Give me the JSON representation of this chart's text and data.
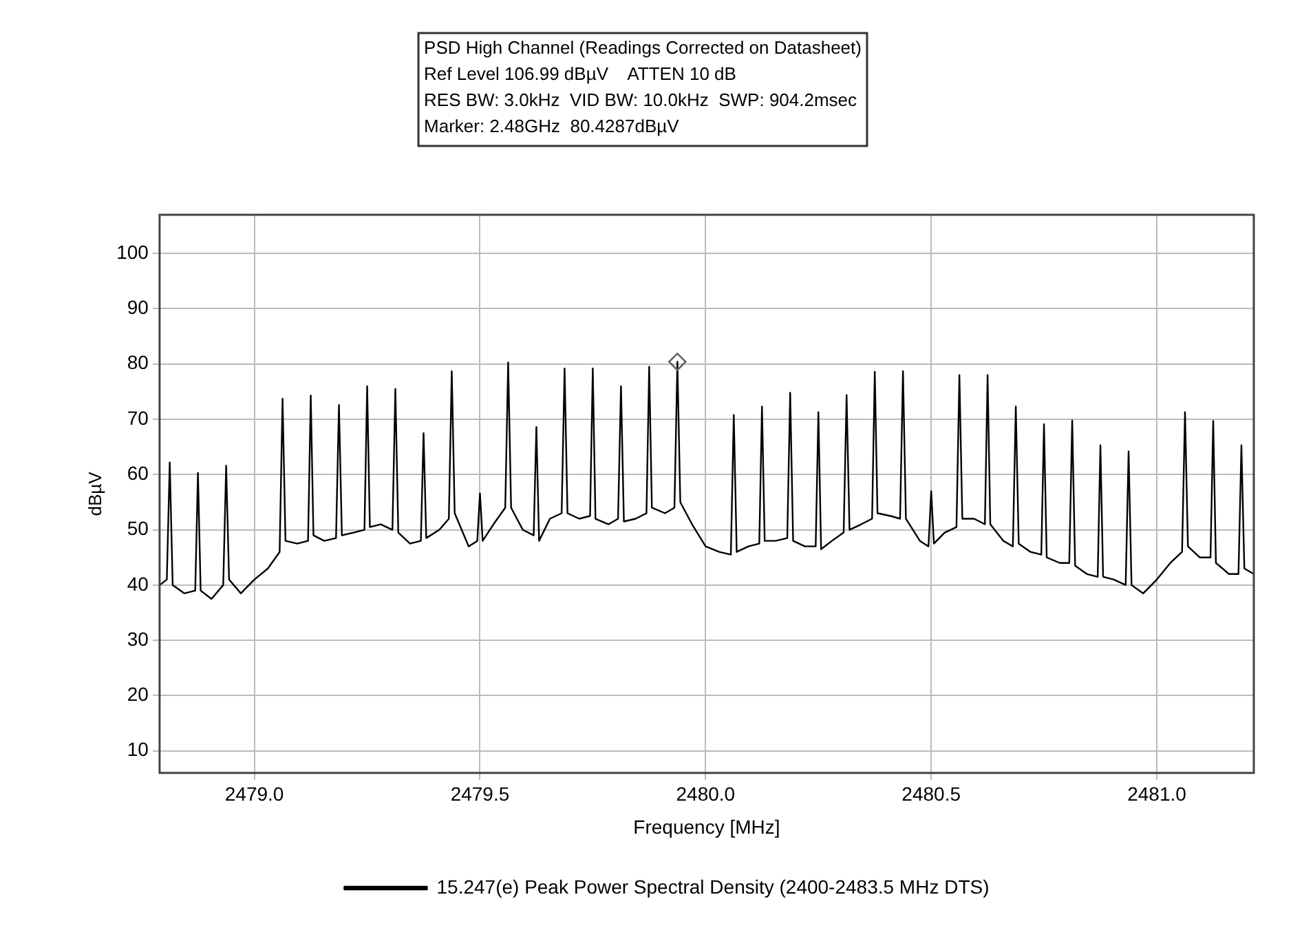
{
  "chart_data": {
    "type": "line",
    "title": "PSD High Channel (Readings Corrected on Datasheet)",
    "annotations": [
      "Ref Level 106.99 dBµV    ATTEN 10 dB",
      "RES BW: 3.0kHz  VID BW: 10.0kHz  SWP: 904.2msec",
      "Marker: 2.48GHz  80.4287dBµV"
    ],
    "xlabel": "Frequency [MHz]",
    "ylabel": "dBµV",
    "xlim": [
      2478.79,
      2481.215
    ],
    "xticks": [
      {
        "value": 2479,
        "label": "2479.0"
      },
      {
        "value": 2479.5,
        "label": "2479.5"
      },
      {
        "value": 2480,
        "label": "2480.0"
      },
      {
        "value": 2480.5,
        "label": "2480.5"
      },
      {
        "value": 2481,
        "label": "2481.0"
      }
    ],
    "ylim": [
      6,
      107
    ],
    "yticks": [
      10,
      20,
      30,
      40,
      50,
      60,
      70,
      80,
      90,
      100
    ],
    "grid": true,
    "legend": "bottom",
    "line_style": "solid",
    "series": [
      {
        "type": "scatter",
        "color": "#666666",
        "x": [
          2479.9375
        ],
        "values": [
          80.4
        ]
      },
      {
        "name": "15.247(e) Peak Power Spectral Density (2400-2483.5 MHz DTS)",
        "color": "#000000",
        "x": [
          2478.79,
          2478.806,
          2478.8125,
          2478.819,
          2478.845,
          2478.869,
          2478.875,
          2478.881,
          2478.905,
          2478.931,
          2478.9375,
          2478.944,
          2478.97,
          2479.0,
          2479.03,
          2479.056,
          2479.0625,
          2479.069,
          2479.095,
          2479.119,
          2479.125,
          2479.131,
          2479.155,
          2479.181,
          2479.1875,
          2479.194,
          2479.22,
          2479.244,
          2479.25,
          2479.256,
          2479.28,
          2479.306,
          2479.3125,
          2479.319,
          2479.345,
          2479.369,
          2479.375,
          2479.381,
          2479.41,
          2479.431,
          2479.4375,
          2479.444,
          2479.475,
          2479.494,
          2479.5,
          2479.506,
          2479.53,
          2479.556,
          2479.5625,
          2479.569,
          2479.595,
          2479.619,
          2479.625,
          2479.631,
          2479.655,
          2479.681,
          2479.6875,
          2479.694,
          2479.72,
          2479.744,
          2479.75,
          2479.756,
          2479.785,
          2479.806,
          2479.8125,
          2479.819,
          2479.845,
          2479.869,
          2479.875,
          2479.881,
          2479.91,
          2479.931,
          2479.9375,
          2479.944,
          2479.97,
          2480.0,
          2480.03,
          2480.056,
          2480.0625,
          2480.069,
          2480.095,
          2480.119,
          2480.125,
          2480.131,
          2480.155,
          2480.181,
          2480.1875,
          2480.194,
          2480.22,
          2480.244,
          2480.25,
          2480.256,
          2480.28,
          2480.306,
          2480.3125,
          2480.319,
          2480.345,
          2480.369,
          2480.375,
          2480.381,
          2480.41,
          2480.431,
          2480.4375,
          2480.444,
          2480.475,
          2480.494,
          2480.5,
          2480.506,
          2480.53,
          2480.556,
          2480.5625,
          2480.569,
          2480.595,
          2480.619,
          2480.625,
          2480.631,
          2480.66,
          2480.681,
          2480.6875,
          2480.694,
          2480.72,
          2480.744,
          2480.75,
          2480.756,
          2480.785,
          2480.806,
          2480.8125,
          2480.819,
          2480.845,
          2480.869,
          2480.875,
          2480.881,
          2480.905,
          2480.931,
          2480.9375,
          2480.944,
          2480.97,
          2481.0,
          2481.03,
          2481.056,
          2481.0625,
          2481.069,
          2481.095,
          2481.119,
          2481.125,
          2481.131,
          2481.16,
          2481.181,
          2481.1875,
          2481.194,
          2481.215
        ],
        "values": [
          40,
          41,
          62.2,
          40,
          38.5,
          39,
          60.3,
          39,
          37.5,
          40,
          61.6,
          41,
          38.5,
          41,
          43,
          46,
          73.7,
          48,
          47.5,
          48,
          74.3,
          49,
          48,
          48.5,
          72.6,
          49,
          49.5,
          50,
          76,
          50.5,
          51,
          50,
          75.5,
          49.5,
          47.5,
          48,
          67.5,
          48.5,
          50,
          52,
          78.7,
          53,
          47,
          48,
          56.6,
          48,
          51,
          54,
          80.3,
          54,
          50,
          49,
          68.6,
          48,
          52,
          53,
          79.2,
          53,
          52,
          52.5,
          79.2,
          52,
          51,
          52,
          76,
          51.5,
          52,
          53,
          79.5,
          54,
          53,
          54,
          80.4,
          55,
          51,
          47,
          46,
          45.5,
          70.8,
          46,
          47,
          47.5,
          72.3,
          48,
          48,
          48.5,
          74.8,
          48,
          47,
          47,
          71.3,
          46.5,
          48,
          49.5,
          74.4,
          50,
          51,
          52,
          78.6,
          53,
          52.5,
          52,
          78.7,
          52,
          48,
          47,
          57,
          47.5,
          49.5,
          50.5,
          78,
          52,
          52,
          51,
          78,
          51,
          48,
          47,
          72.3,
          47.5,
          46,
          45.5,
          69.1,
          45,
          44,
          44,
          69.8,
          43.5,
          42,
          41.5,
          65.3,
          41.5,
          41,
          40,
          64.2,
          40,
          38.5,
          41,
          44,
          46,
          71.3,
          47,
          45,
          45,
          69.7,
          44,
          42,
          42,
          65.3,
          43,
          42
        ]
      }
    ]
  }
}
